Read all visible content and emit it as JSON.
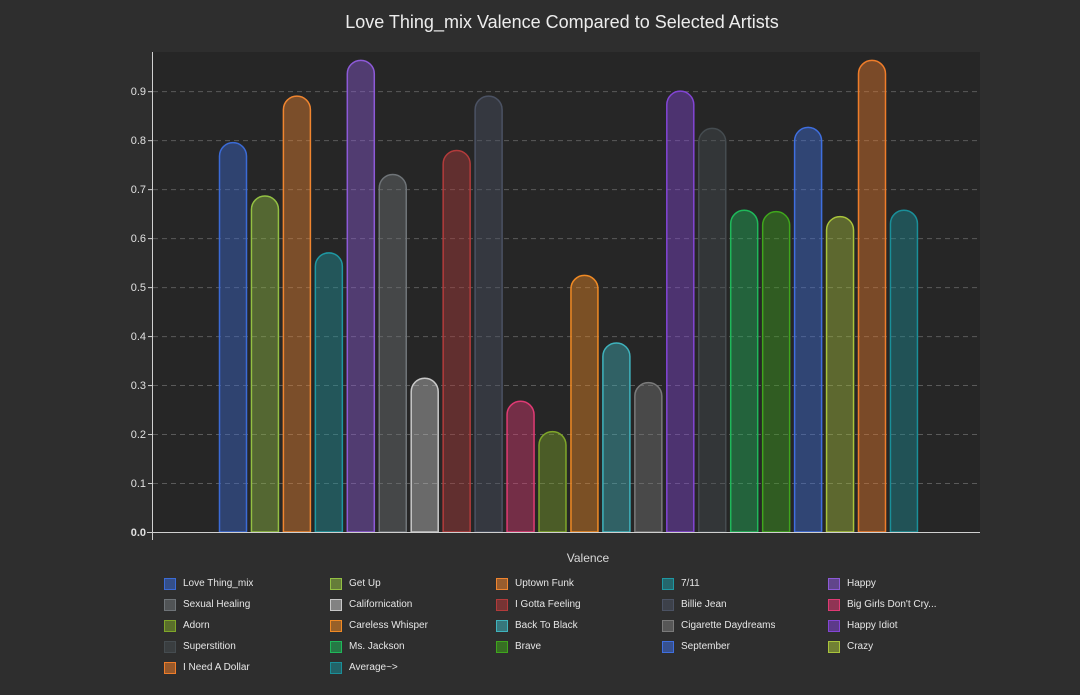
{
  "chart_data": {
    "type": "bar",
    "title": "Love Thing_mix Valence Compared to Selected Artists",
    "xlabel": "Valence",
    "ylabel": "",
    "ylim": [
      0,
      0.98
    ],
    "yticks": [
      "0.0",
      "0.1",
      "0.2",
      "0.3",
      "0.4",
      "0.5",
      "0.6",
      "0.7",
      "0.8",
      "0.9"
    ],
    "grid": true,
    "legend_position": "bottom",
    "series": [
      {
        "name": "Love Thing_mix",
        "value": 0.795,
        "color": "#3b6bd6"
      },
      {
        "name": "Get Up",
        "value": 0.686,
        "color": "#93c043"
      },
      {
        "name": "Uptown Funk",
        "value": 0.89,
        "color": "#f0852f"
      },
      {
        "name": "7/11",
        "value": 0.57,
        "color": "#1e98a3"
      },
      {
        "name": "Happy",
        "value": 0.963,
        "color": "#8d5ad8"
      },
      {
        "name": "Sexual Healing",
        "value": 0.73,
        "color": "#6f7478"
      },
      {
        "name": "Californication",
        "value": 0.314,
        "color": "#c8c8c8"
      },
      {
        "name": "I Gotta Feeling",
        "value": 0.779,
        "color": "#b33b3b"
      },
      {
        "name": "Billie Jean",
        "value": 0.89,
        "color": "#4b5263"
      },
      {
        "name": "Big Girls Don't Cry...",
        "value": 0.267,
        "color": "#e03a74"
      },
      {
        "name": "Adorn",
        "value": 0.205,
        "color": "#7fa629"
      },
      {
        "name": "Careless Whisper",
        "value": 0.524,
        "color": "#f08a24"
      },
      {
        "name": "Back To Black",
        "value": 0.386,
        "color": "#3fb3bd"
      },
      {
        "name": "Cigarette Daydreams",
        "value": 0.305,
        "color": "#7a7a7a"
      },
      {
        "name": "Happy Idiot",
        "value": 0.9,
        "color": "#8345d6"
      },
      {
        "name": "Superstition",
        "value": 0.824,
        "color": "#454c50"
      },
      {
        "name": "Ms. Jackson",
        "value": 0.657,
        "color": "#1fb85a"
      },
      {
        "name": "Brave",
        "value": 0.654,
        "color": "#3fa61c"
      },
      {
        "name": "September",
        "value": 0.826,
        "color": "#3f6fe0"
      },
      {
        "name": "Crazy",
        "value": 0.644,
        "color": "#a9c43b"
      },
      {
        "name": "I Need A Dollar",
        "value": 0.963,
        "color": "#ef7d2a"
      },
      {
        "name": "Average~>",
        "value": 0.657,
        "color": "#1a8f99"
      }
    ]
  }
}
